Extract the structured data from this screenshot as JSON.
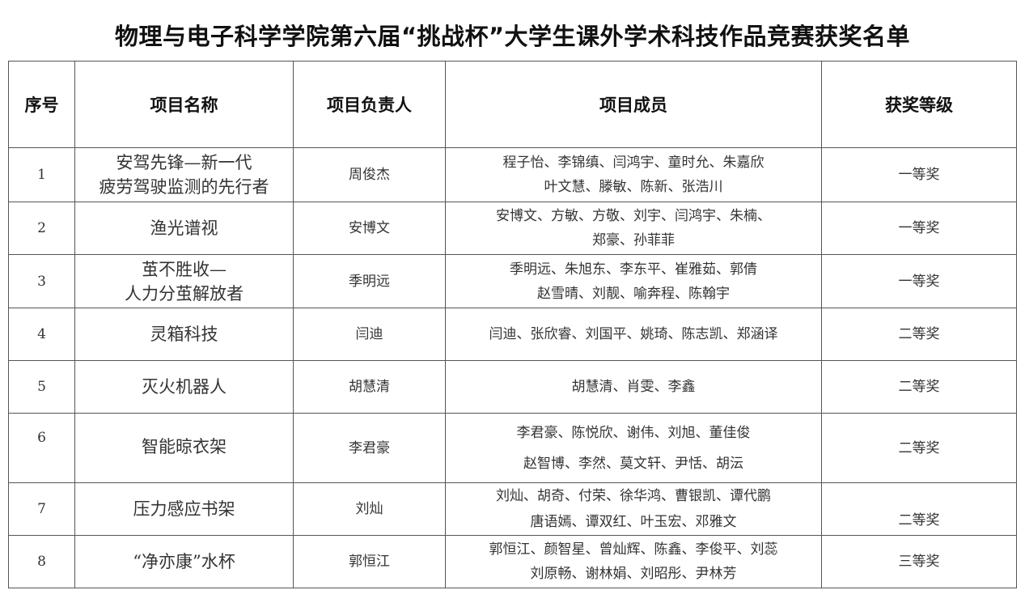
{
  "title": "物理与电子科学学院第六届“挑战杯”大学生课外学术科技作品竞赛获奖名单",
  "headers": [
    "序号",
    "项目名称",
    "项目负责人",
    "项目成员",
    "获奖等级"
  ],
  "rows": [
    {
      "no": "1",
      "name": [
        "安驾先锋—新一代",
        "疲劳驾驶监测的先行者"
      ],
      "leader": "周俊杰",
      "members": [
        "程子怡、李锦缜、闫鸿宇、童时允、朱嘉欣",
        "叶文慧、滕敏、陈新、张浩川"
      ],
      "award": "一等奖"
    },
    {
      "no": "2",
      "name": [
        "渔光谱视"
      ],
      "leader": "安博文",
      "members": [
        "安博文、方敏、方敬、刘宇、闫鸿宇、朱楠、",
        "郑豪、孙菲菲"
      ],
      "award": "一等奖"
    },
    {
      "no": "3",
      "name": [
        "茧不胜收—",
        "人力分茧解放者"
      ],
      "leader": "季明远",
      "members": [
        "季明远、朱旭东、李东平、崔雅茹、郭倩",
        "赵雪晴、刘靓、喻奔程、陈翰宇"
      ],
      "award": "一等奖"
    },
    {
      "no": "4",
      "name": [
        "灵箱科技"
      ],
      "leader": "闫迪",
      "members": [
        "闫迪、张欣睿、刘国平、姚琦、陈志凯、郑涵译"
      ],
      "award": "二等奖"
    },
    {
      "no": "5",
      "name": [
        "灭火机器人"
      ],
      "leader": "胡慧清",
      "members": [
        "胡慧清、肖雯、李鑫"
      ],
      "award": "二等奖"
    },
    {
      "no": "6",
      "name": [
        "智能晾衣架"
      ],
      "leader": "李君豪",
      "members": [
        "李君豪、陈悦欣、谢伟、刘旭、董佳俊",
        "赵智博、李然、莫文轩、尹恬、胡沄"
      ],
      "award": "二等奖"
    },
    {
      "no": "7",
      "name": [
        "压力感应书架"
      ],
      "leader": "刘灿",
      "members": [
        "刘灿、胡奇、付荣、徐华鸿、曹银凯、谭代鹏",
        "唐语嫣、谭双红、叶玉宏、邓雅文"
      ],
      "award": "二等奖"
    },
    {
      "no": "8",
      "name": [
        "“净亦康”水杯"
      ],
      "leader": "郭恒江",
      "members": [
        "郭恒江、颜智星、曾灿辉、陈鑫、李俊平、刘蕊",
        "刘原畅、谢林娟、刘昭彤、尹林芳"
      ],
      "award": "三等奖"
    }
  ]
}
